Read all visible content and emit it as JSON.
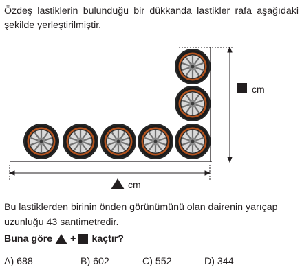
{
  "intro_text": "Özdeş lastiklerin bulunduğu bir dükkanda lastikler rafa aşağıdaki şekilde yerleştirilmiştir.",
  "figure": {
    "vertical_unit": "cm",
    "horizontal_unit": "cm",
    "bottom_row_tires": 5,
    "right_stack_tires": 3
  },
  "info_text": "Bu lastiklerden birinin önden görünümünü olan dairenin yarıçap uzunluğu 43 santimetredir.",
  "question": {
    "prefix": "Buna göre",
    "plus": "+",
    "suffix": "kaçtır?"
  },
  "choices": [
    {
      "label": "A) 688"
    },
    {
      "label": "B) 602"
    },
    {
      "label": "C) 552"
    },
    {
      "label": "D) 344"
    }
  ]
}
